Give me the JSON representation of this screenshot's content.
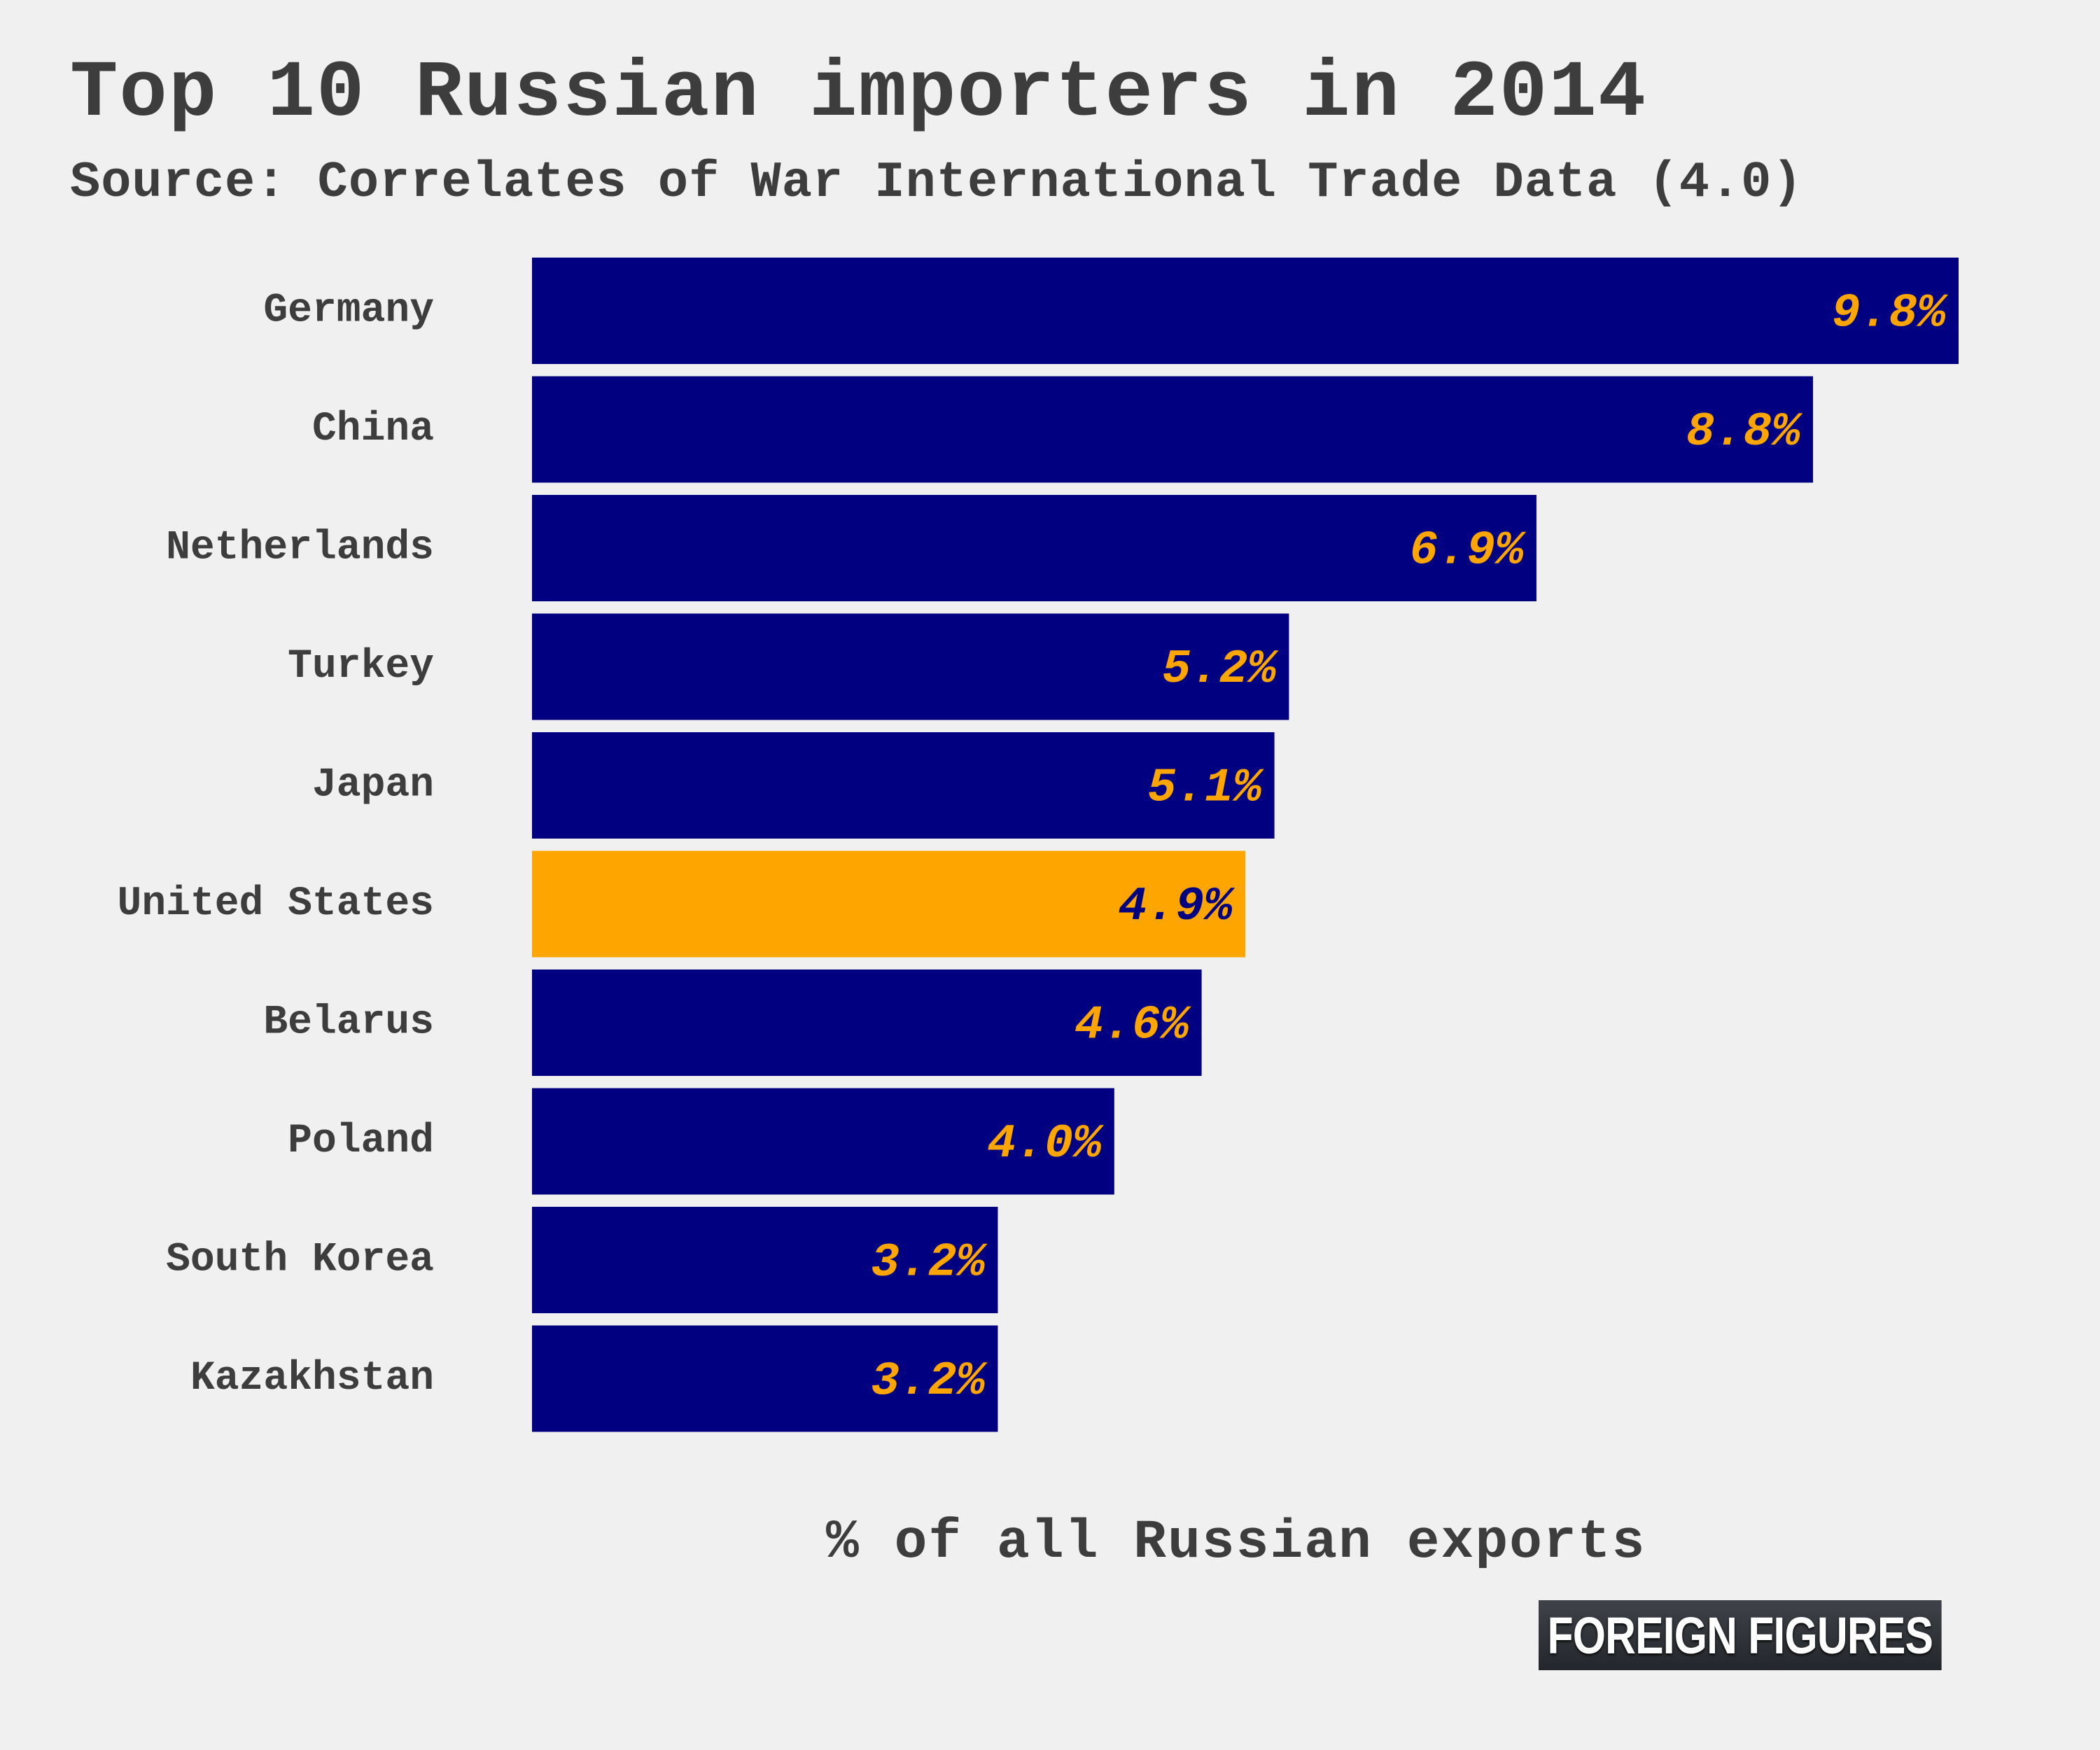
{
  "chart_data": {
    "type": "bar",
    "orientation": "horizontal",
    "title": "Top 10 Russian importers in 2014",
    "subtitle": "Source: Correlates of War International Trade Data (4.0)",
    "xlabel": "% of all Russian exports",
    "categories": [
      "Germany",
      "China",
      "Netherlands",
      "Turkey",
      "Japan",
      "United States",
      "Belarus",
      "Poland",
      "South Korea",
      "Kazakhstan"
    ],
    "values": [
      9.8,
      8.8,
      6.9,
      5.2,
      5.1,
      4.9,
      4.6,
      4.0,
      3.2,
      3.2
    ],
    "value_labels": [
      "9.8%",
      "8.8%",
      "6.9%",
      "5.2%",
      "5.1%",
      "4.9%",
      "4.6%",
      "4.0%",
      "3.2%",
      "3.2%"
    ],
    "highlight": "United States",
    "xlim": [
      0,
      9.8
    ],
    "grid": false,
    "legend": "none",
    "colors": {
      "bar": "#000080",
      "bar_highlight": "#ffa500",
      "label_on_bar": "#ffa500",
      "label_on_highlight": "#000080",
      "text": "#3d3d3d",
      "background": "#f0f0f0"
    }
  },
  "brand": {
    "text": "FOREIGN FIGURES"
  }
}
